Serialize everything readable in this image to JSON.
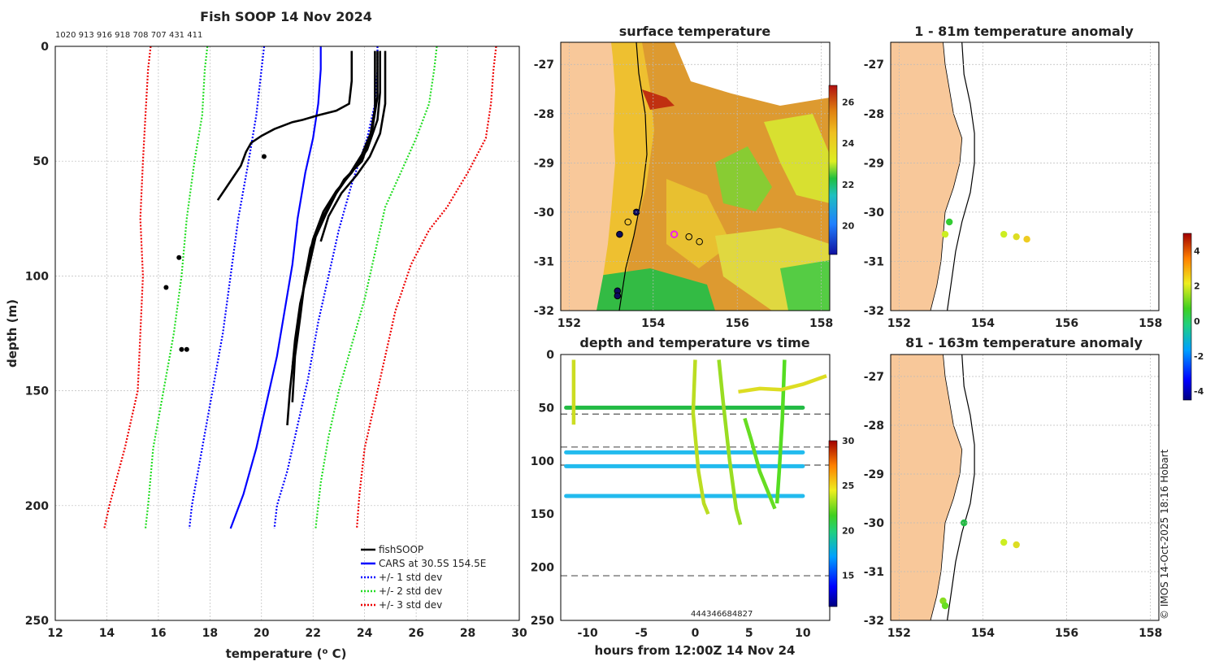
{
  "chart_data": [
    {
      "id": "profile",
      "type": "line",
      "title": "Fish SOOP 14 Nov 2024",
      "top_label": "1020 913 916 918 708 707 431 411",
      "xlabel": "temperature (",
      "xlabel_sup": "o",
      "xlabel_end": " C)",
      "ylabel": "depth (m)",
      "xlim": [
        12,
        30
      ],
      "ylim": [
        250,
        0
      ],
      "xticks": [
        12,
        14,
        16,
        18,
        20,
        22,
        24,
        26,
        28,
        30
      ],
      "yticks": [
        0,
        50,
        100,
        150,
        200,
        250
      ],
      "legend": [
        "fishSOOP",
        "CARS at 30.5S 154.5E",
        "+/- 1 std dev",
        "+/- 2 std dev",
        "+/- 3 std dev"
      ],
      "colors": {
        "fish": "#000000",
        "cars": "#0000ff",
        "sd1": "#0000ff",
        "sd2": "#22dd22",
        "sd3": "#ee0000"
      },
      "cars": [
        [
          22.3,
          0
        ],
        [
          22.3,
          10
        ],
        [
          22.2,
          25
        ],
        [
          22.0,
          40
        ],
        [
          21.7,
          55
        ],
        [
          21.4,
          75
        ],
        [
          21.2,
          95
        ],
        [
          20.9,
          115
        ],
        [
          20.6,
          135
        ],
        [
          20.2,
          155
        ],
        [
          19.8,
          175
        ],
        [
          19.3,
          195
        ],
        [
          18.8,
          210
        ]
      ],
      "sd": [
        {
          "level": 1,
          "side": "left",
          "pts": [
            [
              20.1,
              0
            ],
            [
              20.0,
              10
            ],
            [
              19.8,
              30
            ],
            [
              19.5,
              50
            ],
            [
              19.1,
              75
            ],
            [
              18.8,
              100
            ],
            [
              18.5,
              125
            ],
            [
              18.1,
              150
            ],
            [
              17.7,
              175
            ],
            [
              17.3,
              200
            ],
            [
              17.2,
              210
            ]
          ]
        },
        {
          "level": 1,
          "side": "right",
          "pts": [
            [
              24.5,
              0
            ],
            [
              24.5,
              10
            ],
            [
              24.4,
              25
            ],
            [
              24.1,
              40
            ],
            [
              23.5,
              60
            ],
            [
              23.0,
              80
            ],
            [
              22.6,
              100
            ],
            [
              22.2,
              120
            ],
            [
              21.8,
              145
            ],
            [
              21.4,
              165
            ],
            [
              21.0,
              185
            ],
            [
              20.6,
              200
            ],
            [
              20.5,
              210
            ]
          ]
        },
        {
          "level": 2,
          "side": "left",
          "pts": [
            [
              17.9,
              0
            ],
            [
              17.8,
              10
            ],
            [
              17.7,
              30
            ],
            [
              17.4,
              50
            ],
            [
              17.1,
              75
            ],
            [
              16.9,
              100
            ],
            [
              16.6,
              125
            ],
            [
              16.2,
              150
            ],
            [
              15.8,
              175
            ],
            [
              15.6,
              200
            ],
            [
              15.5,
              210
            ]
          ]
        },
        {
          "level": 2,
          "side": "right",
          "pts": [
            [
              26.8,
              0
            ],
            [
              26.7,
              10
            ],
            [
              26.5,
              25
            ],
            [
              26.0,
              40
            ],
            [
              25.4,
              55
            ],
            [
              24.8,
              70
            ],
            [
              24.4,
              90
            ],
            [
              24.0,
              110
            ],
            [
              23.5,
              130
            ],
            [
              23.0,
              150
            ],
            [
              22.6,
              170
            ],
            [
              22.3,
              190
            ],
            [
              22.1,
              210
            ]
          ]
        },
        {
          "level": 3,
          "side": "left",
          "pts": [
            [
              15.7,
              0
            ],
            [
              15.6,
              10
            ],
            [
              15.5,
              30
            ],
            [
              15.4,
              50
            ],
            [
              15.3,
              75
            ],
            [
              15.4,
              100
            ],
            [
              15.3,
              125
            ],
            [
              15.2,
              150
            ],
            [
              14.7,
              175
            ],
            [
              14.1,
              200
            ],
            [
              13.9,
              210
            ]
          ]
        },
        {
          "level": 3,
          "side": "right",
          "pts": [
            [
              29.1,
              0
            ],
            [
              29.0,
              10
            ],
            [
              28.9,
              25
            ],
            [
              28.7,
              40
            ],
            [
              28.0,
              55
            ],
            [
              27.2,
              70
            ],
            [
              26.5,
              80
            ],
            [
              25.8,
              95
            ],
            [
              25.2,
              115
            ],
            [
              24.8,
              135
            ],
            [
              24.4,
              155
            ],
            [
              24.0,
              175
            ],
            [
              23.8,
              195
            ],
            [
              23.7,
              210
            ]
          ]
        }
      ],
      "fish": [
        [
          [
            23.5,
            2
          ],
          [
            23.5,
            15
          ],
          [
            23.4,
            25
          ],
          [
            22.9,
            28
          ],
          [
            22.2,
            30
          ],
          [
            21.6,
            32
          ],
          [
            21.2,
            33
          ],
          [
            20.5,
            36
          ],
          [
            20.0,
            39
          ],
          [
            19.6,
            42
          ],
          [
            19.4,
            46
          ],
          [
            19.2,
            52
          ],
          [
            18.9,
            57
          ],
          [
            18.6,
            62
          ],
          [
            18.3,
            67
          ]
        ],
        [
          [
            24.4,
            2
          ],
          [
            24.4,
            15
          ],
          [
            24.4,
            27
          ],
          [
            24.2,
            40
          ],
          [
            23.9,
            50
          ],
          [
            23.2,
            58
          ],
          [
            22.8,
            66
          ],
          [
            22.3,
            76
          ],
          [
            21.9,
            88
          ],
          [
            21.7,
            100
          ],
          [
            21.5,
            115
          ],
          [
            21.3,
            130
          ],
          [
            21.1,
            150
          ],
          [
            21.0,
            165
          ]
        ],
        [
          [
            24.6,
            2
          ],
          [
            24.6,
            20
          ],
          [
            24.5,
            32
          ],
          [
            24.1,
            45
          ],
          [
            23.5,
            55
          ],
          [
            22.9,
            63
          ],
          [
            22.4,
            72
          ],
          [
            22.0,
            84
          ],
          [
            21.7,
            100
          ],
          [
            21.5,
            118
          ],
          [
            21.3,
            135
          ],
          [
            21.2,
            155
          ]
        ],
        [
          [
            24.8,
            2
          ],
          [
            24.8,
            25
          ],
          [
            24.6,
            38
          ],
          [
            24.2,
            48
          ],
          [
            23.7,
            56
          ],
          [
            23.1,
            64
          ],
          [
            22.6,
            74
          ],
          [
            22.3,
            85
          ]
        ],
        [
          [
            24.5,
            2
          ],
          [
            24.5,
            22
          ],
          [
            24.3,
            36
          ],
          [
            23.9,
            47
          ],
          [
            23.4,
            56
          ],
          [
            22.9,
            64
          ],
          [
            22.5,
            73
          ],
          [
            22.1,
            83
          ],
          [
            21.8,
            98
          ],
          [
            21.5,
            112
          ],
          [
            21.3,
            128
          ],
          [
            21.2,
            140
          ]
        ]
      ],
      "blobs": [
        [
          20.1,
          48
        ],
        [
          16.8,
          92
        ],
        [
          16.3,
          105
        ],
        [
          16.9,
          132
        ],
        [
          17.1,
          132
        ]
      ]
    },
    {
      "id": "sst",
      "type": "heatmap",
      "title": "surface temperature",
      "xticks": [
        152,
        154,
        156,
        158
      ],
      "yticks": [
        -27,
        -28,
        -29,
        -30,
        -31,
        -32
      ],
      "colorbar": [
        20,
        22,
        24,
        26
      ],
      "stations": [
        {
          "lon": 153.6,
          "lat": -30.0,
          "fill": "#0c0c60"
        },
        {
          "lon": 153.4,
          "lat": -30.2,
          "fill": "none"
        },
        {
          "lon": 153.2,
          "lat": -30.45,
          "fill": "#0c0c60"
        },
        {
          "lon": 153.15,
          "lat": -31.6,
          "fill": "#0c0c60"
        },
        {
          "lon": 153.15,
          "lat": -31.7,
          "fill": "#0c0c60"
        },
        {
          "lon": 154.85,
          "lat": -30.5,
          "fill": "none"
        },
        {
          "lon": 155.1,
          "lat": -30.6,
          "fill": "none"
        },
        {
          "lon": 154.5,
          "lat": -30.45,
          "fill": "magenta"
        }
      ]
    },
    {
      "id": "timeplot",
      "type": "scatter",
      "title": "depth and temperature vs time",
      "xlabel": "hours from 12:00Z 14 Nov 24",
      "xticks": [
        -10,
        -5,
        0,
        5,
        10
      ],
      "yticks": [
        0,
        50,
        100,
        150,
        200,
        250
      ],
      "colorbar": [
        15,
        20,
        25,
        30
      ],
      "dashed_depths": [
        56,
        87,
        104,
        208
      ],
      "annotation": "4443",
      "annotation2": "4668",
      "annotation3": "4827",
      "bands": [
        {
          "depth": 50,
          "temp": 21.5,
          "color": "#22bb44"
        },
        {
          "depth": 92,
          "temp": 16,
          "color": "#22bbee"
        },
        {
          "depth": 105,
          "temp": 16,
          "color": "#22bbee"
        },
        {
          "depth": 133,
          "temp": 16,
          "color": "#22bbee"
        }
      ]
    },
    {
      "id": "anom1",
      "type": "scatter",
      "title": "1 - 81m temperature anomaly",
      "xticks": [
        152,
        154,
        156,
        158
      ],
      "yticks": [
        -27,
        -28,
        -29,
        -30,
        -31,
        -32
      ],
      "points": [
        {
          "lon": 153.2,
          "lat": -30.2,
          "color": "#33cc33"
        },
        {
          "lon": 153.1,
          "lat": -30.45,
          "color": "#ccee22"
        },
        {
          "lon": 154.5,
          "lat": -30.45,
          "color": "#ccee22"
        },
        {
          "lon": 154.8,
          "lat": -30.5,
          "color": "#dddd22"
        },
        {
          "lon": 155.05,
          "lat": -30.55,
          "color": "#eecc22"
        }
      ]
    },
    {
      "id": "anom2",
      "type": "scatter",
      "title": "81 - 163m temperature anomaly",
      "xticks": [
        152,
        154,
        156,
        158
      ],
      "yticks": [
        -27,
        -28,
        -29,
        -30,
        -31,
        -32
      ],
      "colorbar": [
        -4,
        -2,
        0,
        2,
        4
      ],
      "points": [
        {
          "lon": 153.55,
          "lat": -30.0,
          "color": "#22bb44"
        },
        {
          "lon": 154.5,
          "lat": -30.4,
          "color": "#ccee22"
        },
        {
          "lon": 154.8,
          "lat": -30.45,
          "color": "#dddd22"
        },
        {
          "lon": 153.05,
          "lat": -31.6,
          "color": "#88dd22"
        },
        {
          "lon": 153.1,
          "lat": -31.7,
          "color": "#66dd22"
        }
      ]
    }
  ],
  "credit": "© IMOS 14-Oct-2025 18:16 Hobart"
}
